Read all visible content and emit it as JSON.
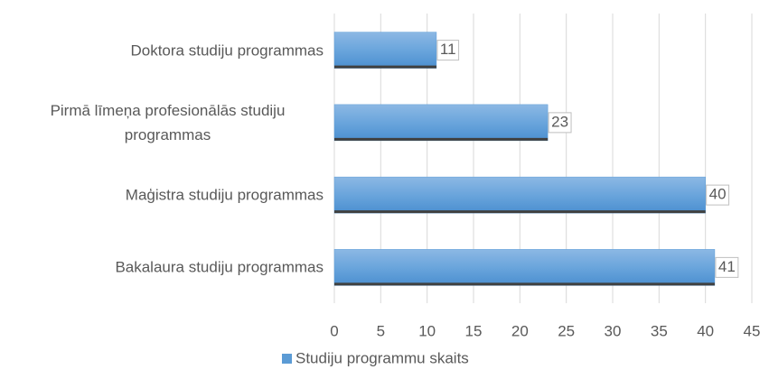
{
  "chart_data": {
    "type": "bar",
    "orientation": "horizontal",
    "categories": [
      "Doktora studiju programmas",
      "Pirmā līmeņa profesionālās studiju programmas",
      "Maģistra studiju programmas",
      "Bakalaura studiju programmas"
    ],
    "series": [
      {
        "name": "Studiju programmu skaits",
        "color": "#5b9bd5",
        "values": [
          11,
          23,
          40,
          41
        ]
      }
    ],
    "xlim": [
      0,
      45
    ],
    "xticks": [
      0,
      5,
      10,
      15,
      20,
      25,
      30,
      35,
      40,
      45
    ],
    "grid": true,
    "legend": "bottom"
  }
}
